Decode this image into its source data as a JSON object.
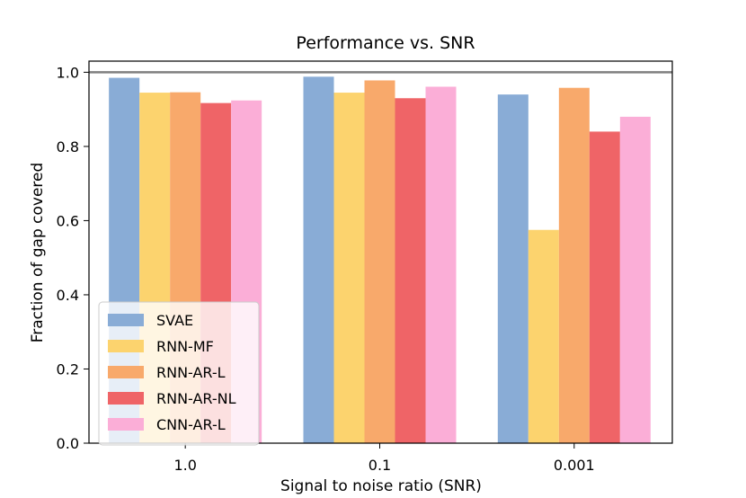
{
  "chart_data": {
    "type": "bar",
    "title": "Performance vs. SNR",
    "xlabel": "Signal to noise ratio (SNR)",
    "ylabel": "Fraction of gap covered",
    "categories": [
      "1.0",
      "0.1",
      "0.001"
    ],
    "ylim": [
      0,
      1.03
    ],
    "yticks": [
      0.0,
      0.2,
      0.4,
      0.6,
      0.8,
      1.0
    ],
    "ytick_labels": [
      "0.0",
      "0.2",
      "0.4",
      "0.6",
      "0.8",
      "1.0"
    ],
    "reference_line": {
      "y": 1.0,
      "color": "#808080"
    },
    "legend_position": "lower-left",
    "grid": false,
    "series": [
      {
        "name": "SVAE",
        "color": "#89acd6",
        "values": [
          0.985,
          0.988,
          0.94
        ]
      },
      {
        "name": "RNN-MF",
        "color": "#fcd36e",
        "values": [
          0.945,
          0.945,
          0.575
        ]
      },
      {
        "name": "RNN-AR-L",
        "color": "#f8a96b",
        "values": [
          0.946,
          0.978,
          0.958
        ]
      },
      {
        "name": "RNN-AR-NL",
        "color": "#ef6467",
        "values": [
          0.917,
          0.93,
          0.84
        ]
      },
      {
        "name": "CNN-AR-L",
        "color": "#fbaed7",
        "values": [
          0.924,
          0.961,
          0.88
        ]
      }
    ]
  }
}
